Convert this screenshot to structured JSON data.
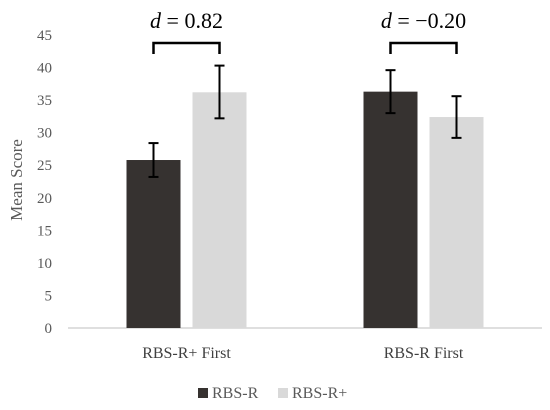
{
  "chart_data": {
    "type": "bar",
    "categories": [
      "RBS-R+ First",
      "RBS-R First"
    ],
    "series": [
      {
        "name": "RBS-R",
        "values": [
          25.8,
          36.3
        ],
        "error_low": [
          23.2,
          33.0
        ],
        "error_high": [
          28.4,
          39.6
        ],
        "color": "#363230"
      },
      {
        "name": "RBS-R+",
        "values": [
          36.2,
          32.4
        ],
        "error_low": [
          32.2,
          29.2
        ],
        "error_high": [
          40.3,
          35.6
        ],
        "color": "#d9d9d9"
      }
    ],
    "ylabel": "Mean Score",
    "xlabel": "",
    "ylim": [
      0,
      45
    ],
    "yticks": [
      "0",
      "5",
      "10",
      "15",
      "20",
      "25",
      "30",
      "35",
      "40",
      "45"
    ],
    "grid": false,
    "legend_position": "bottom",
    "annotations": [
      {
        "category_index": 0,
        "variable": "d",
        "text": " = 0.82"
      },
      {
        "category_index": 1,
        "variable": "d",
        "text": " = −0.20"
      }
    ]
  }
}
